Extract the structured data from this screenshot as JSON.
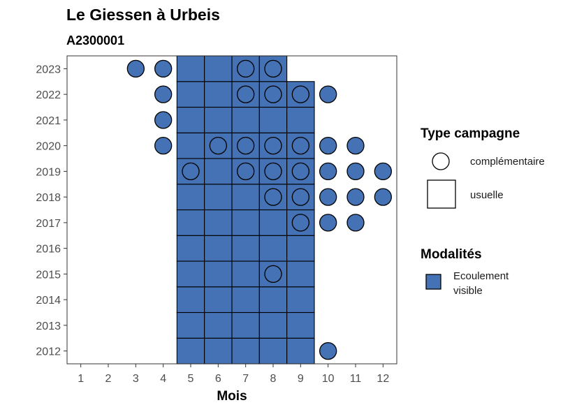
{
  "chart_data": {
    "type": "scatter",
    "title": "Le Giessen à Urbeis",
    "subtitle": "A2300001",
    "xlabel": "Mois",
    "ylabel": "",
    "x_ticks": [
      1,
      2,
      3,
      4,
      5,
      6,
      7,
      8,
      9,
      10,
      11,
      12
    ],
    "y_ticks": [
      2012,
      2013,
      2014,
      2015,
      2016,
      2017,
      2018,
      2019,
      2020,
      2021,
      2022,
      2023
    ],
    "xlim": [
      0.5,
      12.5
    ],
    "ylim": [
      2011.5,
      2023.5
    ],
    "usuelle_months_by_year": {
      "2012": [
        5,
        6,
        7,
        8,
        9
      ],
      "2013": [
        5,
        6,
        7,
        8,
        9
      ],
      "2014": [
        5,
        6,
        7,
        8,
        9
      ],
      "2015": [
        5,
        6,
        7,
        8,
        9
      ],
      "2016": [
        5,
        6,
        7,
        8,
        9
      ],
      "2017": [
        5,
        6,
        7,
        8,
        9
      ],
      "2018": [
        5,
        6,
        7,
        8,
        9
      ],
      "2019": [
        5,
        6,
        7,
        8,
        9
      ],
      "2020": [
        5,
        6,
        7,
        8,
        9
      ],
      "2021": [
        5,
        6,
        7,
        8,
        9
      ],
      "2022": [
        5,
        6,
        7,
        8,
        9
      ],
      "2023": [
        5,
        6,
        7,
        8
      ]
    },
    "complementaire_months_by_year": {
      "2012": [
        10
      ],
      "2015": [
        8
      ],
      "2017": [
        9,
        10,
        11
      ],
      "2018": [
        8,
        9,
        10,
        11,
        12
      ],
      "2019": [
        5,
        7,
        8,
        9,
        10,
        11,
        12
      ],
      "2020": [
        4,
        6,
        7,
        8,
        9,
        10,
        11
      ],
      "2021": [
        4
      ],
      "2022": [
        4,
        7,
        8,
        9,
        10
      ],
      "2023": [
        3,
        4,
        7,
        8
      ]
    },
    "modalite": "Ecoulement visible",
    "colors": {
      "fill": "#4472b4",
      "stroke": "#000000",
      "background": "#ffffff"
    },
    "grid": false,
    "legend_placement": "right",
    "legend": {
      "type_title": "Type campagne",
      "type_entries": [
        "complémentaire",
        "usuelle"
      ],
      "modalite_title": "Modalités",
      "modalite_entries": [
        [
          "Ecoulement",
          "visible"
        ]
      ]
    }
  }
}
